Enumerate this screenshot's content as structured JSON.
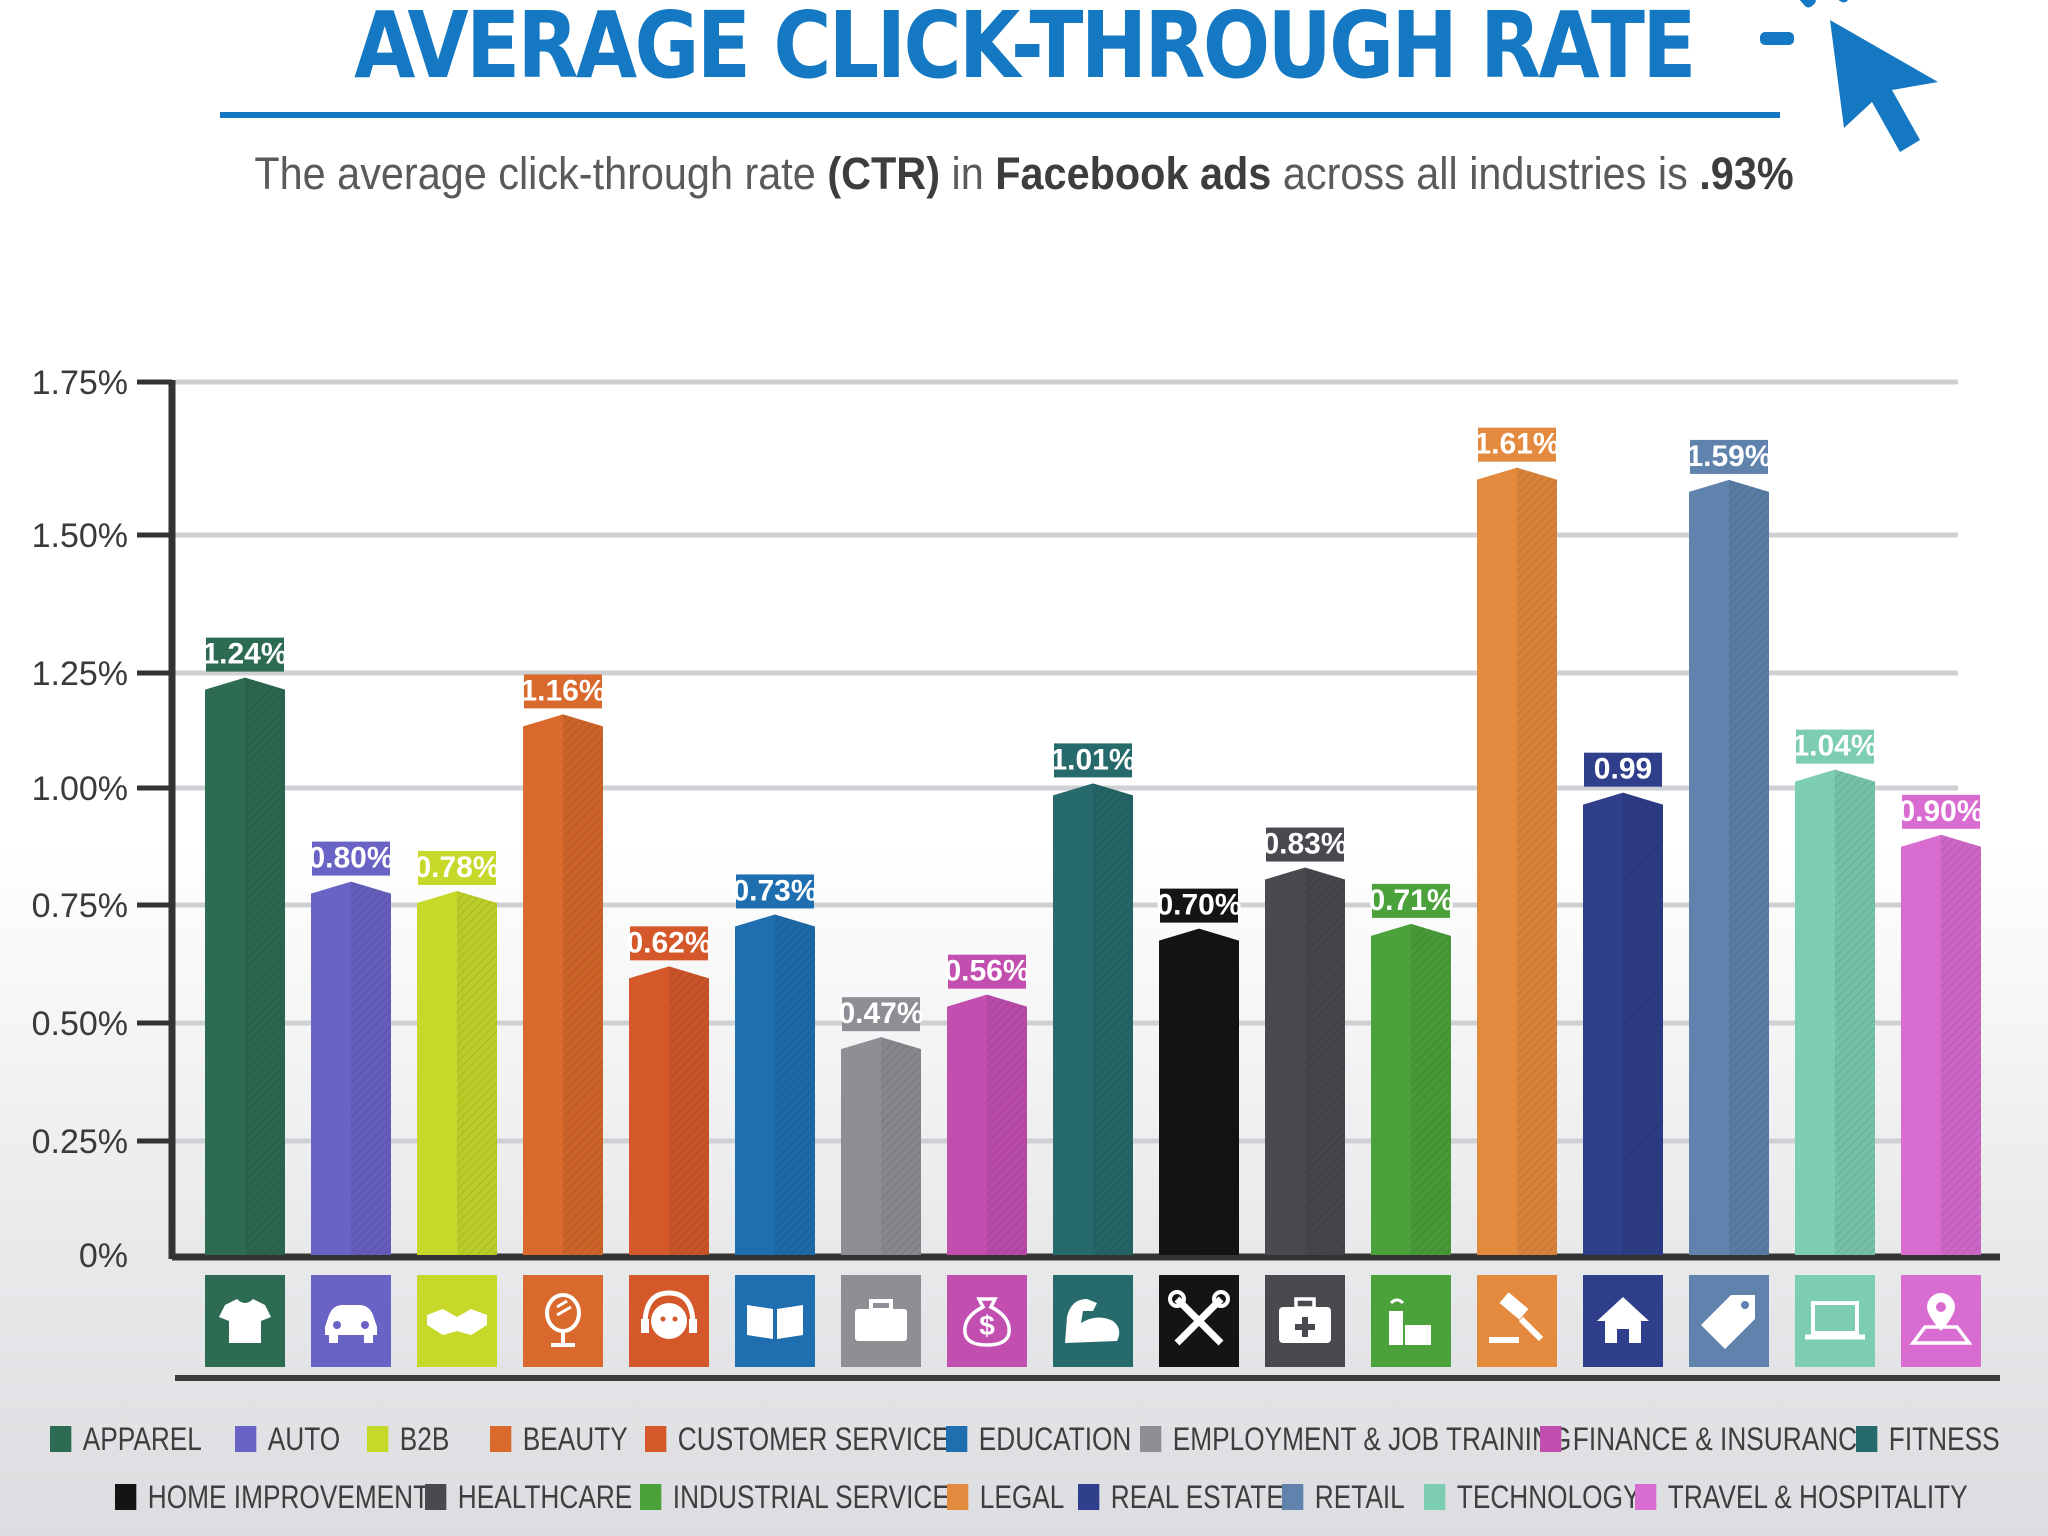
{
  "header": {
    "title": "AVERAGE CLICK-THROUGH RATE",
    "subtitle_pre": "The average click-through rate ",
    "subtitle_b1": "(CTR)",
    "subtitle_mid": " in ",
    "subtitle_b2": "Facebook ads",
    "subtitle_post": " across all industries is ",
    "subtitle_b3": ".93%"
  },
  "chart_data": {
    "type": "bar",
    "title": "AVERAGE CLICK-THROUGH RATE",
    "xlabel": "",
    "ylabel": "",
    "ylim": [
      0,
      1.75
    ],
    "yticks": [
      {
        "value": 0,
        "label": "0%"
      },
      {
        "value": 0.25,
        "label": "0.25%"
      },
      {
        "value": 0.5,
        "label": "0.50%"
      },
      {
        "value": 0.75,
        "label": "0.75%"
      },
      {
        "value": 1.0,
        "label": "1.00%"
      },
      {
        "value": 1.25,
        "label": "1.25%"
      },
      {
        "value": 1.5,
        "label": "1.50%"
      },
      {
        "value": 1.75,
        "label": "1.75%"
      }
    ],
    "grid": true,
    "legend_position": "bottom",
    "categories": [
      "APPAREL",
      "AUTO",
      "B2B",
      "BEAUTY",
      "CUSTOMER SERVICES",
      "EDUCATION",
      "EMPLOYMENT & JOB TRAINING",
      "FINANCE & INSURANCE",
      "FITNESS",
      "HOME IMPROVEMENT",
      "HEALTHCARE",
      "INDUSTRIAL SERVICES",
      "LEGAL",
      "REAL ESTATE",
      "RETAIL",
      "TECHNOLOGY",
      "TRAVEL & HOSPITALITY"
    ],
    "values": [
      1.24,
      0.8,
      0.78,
      1.16,
      0.62,
      0.73,
      0.47,
      0.56,
      1.01,
      0.7,
      0.83,
      0.71,
      1.61,
      0.99,
      1.59,
      1.04,
      0.9
    ],
    "labels": [
      "1.24%",
      "0.80%",
      "0.78%",
      "1.16%",
      "0.62%",
      "0.73%",
      "0.47%",
      "0.56%",
      "1.01%",
      "0.70%",
      "0.83%",
      "0.71%",
      "1.61%",
      "0.99",
      "1.59%",
      "1.04%",
      "0.90%"
    ],
    "colors": [
      "#2e6b53",
      "#6a63c6",
      "#c6d92a",
      "#d9692c",
      "#d4582a",
      "#1f6fb0",
      "#8e8f94",
      "#c24fb0",
      "#266a6b",
      "#141414",
      "#4a4950",
      "#4ba23a",
      "#e48a3f",
      "#2f3f8c",
      "#5f83ad",
      "#7ccdb1",
      "#d96cd0"
    ],
    "icons": [
      "tshirt-icon",
      "car-icon",
      "handshake-icon",
      "mirror-icon",
      "headset-icon",
      "book-icon",
      "briefcase-icon",
      "money-bag-icon",
      "muscle-icon",
      "tools-icon",
      "medical-kit-icon",
      "factory-icon",
      "gavel-icon",
      "house-icon",
      "price-tag-icon",
      "laptop-icon",
      "map-pin-icon"
    ]
  }
}
